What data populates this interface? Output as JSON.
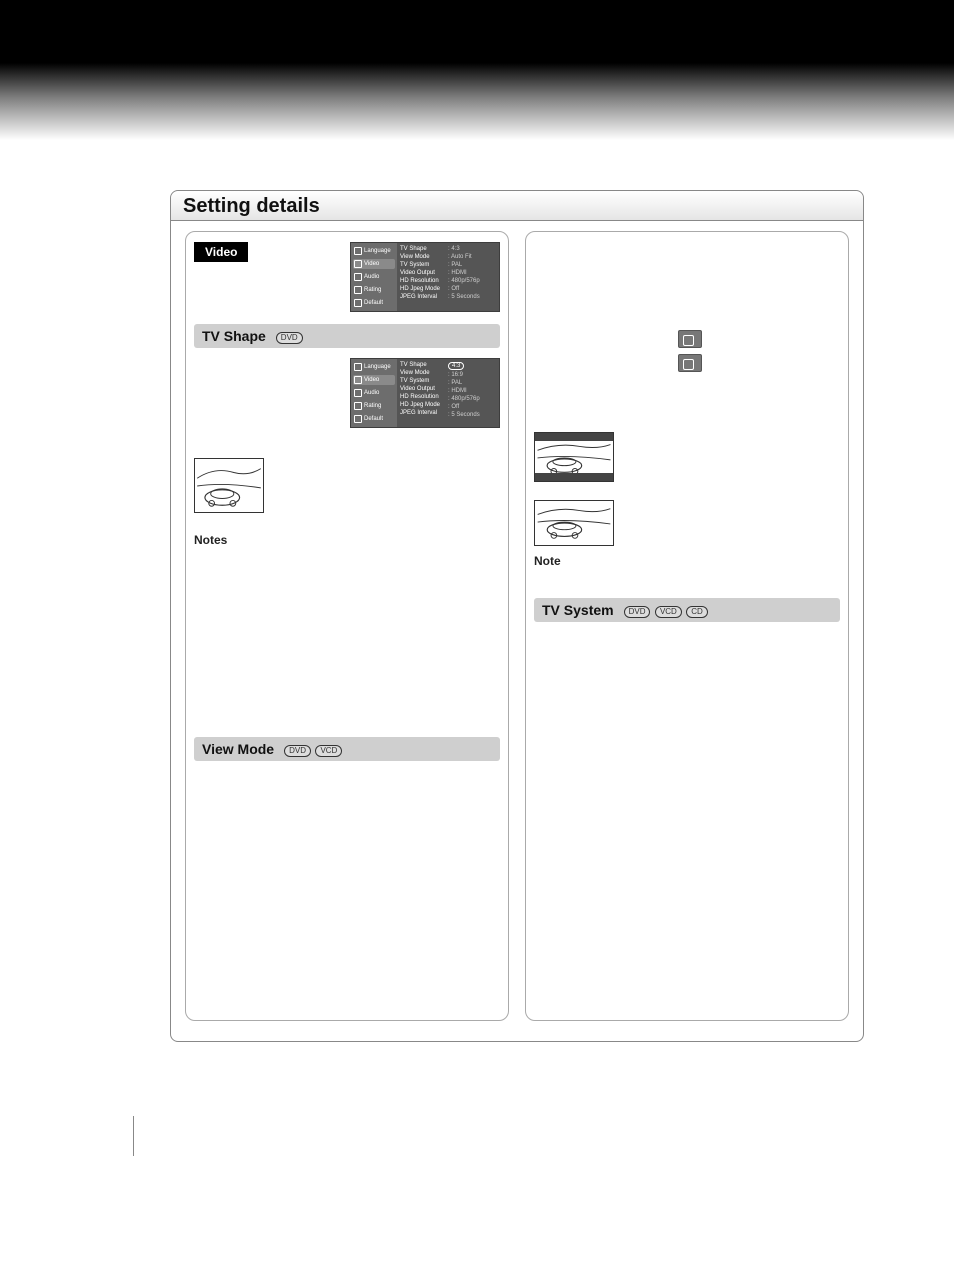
{
  "panel_title": "Setting details",
  "video_badge": "Video",
  "osd": {
    "left_items": [
      "Language",
      "Video",
      "Audio",
      "Rating",
      "Default"
    ],
    "rows": [
      {
        "k": "TV Shape",
        "v": "4:3"
      },
      {
        "k": "View Mode",
        "v": "Auto Fit"
      },
      {
        "k": "TV System",
        "v": "PAL"
      },
      {
        "k": "Video Output",
        "v": "HDMI"
      },
      {
        "k": "HD Resolution",
        "v": "480p/576p"
      },
      {
        "k": "HD Jpeg Mode",
        "v": "Off"
      },
      {
        "k": "JPEG Interval",
        "v": "5 Seconds"
      }
    ]
  },
  "osd2": {
    "left_items": [
      "Language",
      "Video",
      "Audio",
      "Rating",
      "Default"
    ],
    "rows": [
      {
        "k": "TV Shape",
        "v": "4:3",
        "hl": true
      },
      {
        "k": "View Mode",
        "v": "16:9"
      },
      {
        "k": "TV System",
        "v": "PAL"
      },
      {
        "k": "Video Output",
        "v": "HDMI"
      },
      {
        "k": "HD Resolution",
        "v": "480p/576p"
      },
      {
        "k": "HD Jpeg Mode",
        "v": "Off"
      },
      {
        "k": "JPEG Interval",
        "v": "5 Seconds"
      }
    ]
  },
  "sections": {
    "tv_shape": {
      "label": "TV Shape",
      "badges": [
        "DVD"
      ]
    },
    "view_mode": {
      "label": "View Mode",
      "badges": [
        "DVD",
        "VCD"
      ]
    },
    "tv_system": {
      "label": "TV System",
      "badges": [
        "DVD",
        "VCD",
        "CD"
      ]
    }
  },
  "notes_label": "Notes",
  "note_label": "Note",
  "colors": {
    "osd_bg": "#6d6d6d",
    "osd_mid": "#555555",
    "section_bar": "#cfcfcf",
    "badge_bg": "#777777"
  }
}
